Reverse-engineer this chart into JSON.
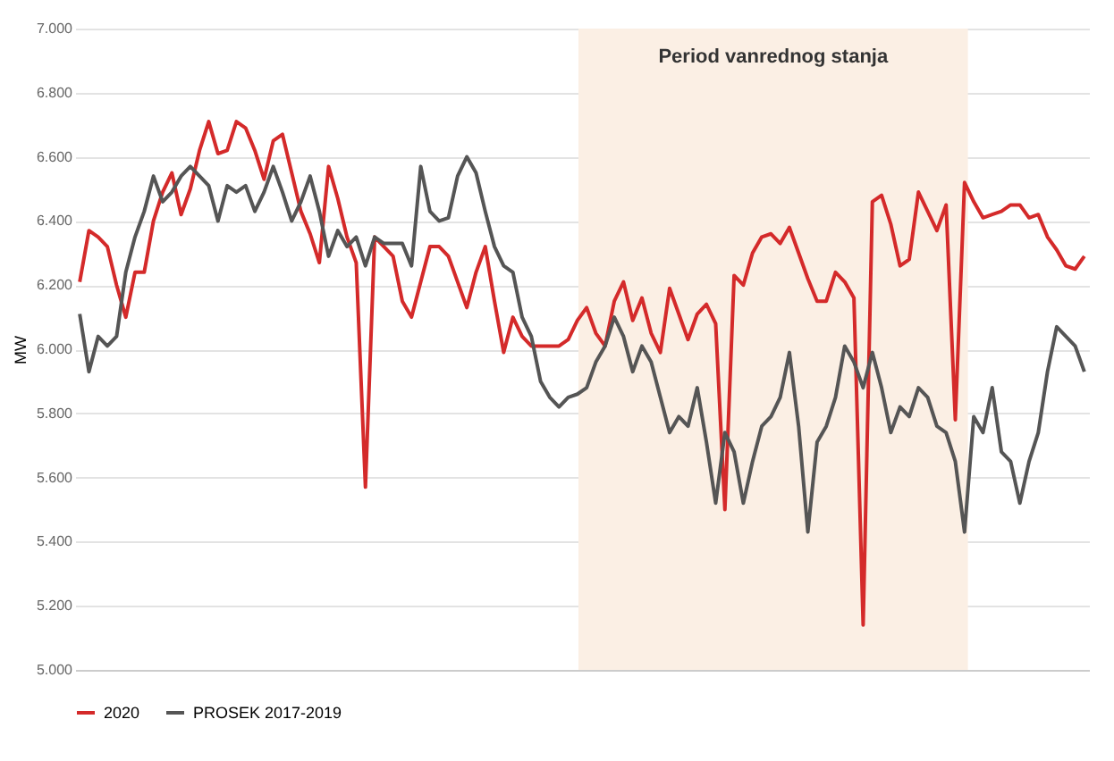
{
  "chart_data": {
    "type": "line",
    "ylabel": "MW",
    "legend": "bottom",
    "grid": "y",
    "line_style": "solid",
    "categories": [
      null,
      null,
      null,
      null,
      null,
      null,
      null,
      null,
      null,
      null,
      null,
      null,
      null,
      null,
      null,
      null,
      null,
      null,
      null,
      null,
      null,
      null,
      null,
      null,
      null,
      null,
      null,
      null,
      null,
      null,
      null,
      null,
      null,
      null,
      null,
      null,
      null,
      null,
      null,
      null,
      null,
      null,
      null,
      null,
      null,
      null,
      null,
      null,
      null,
      null,
      null,
      null,
      null,
      null,
      null,
      null,
      null,
      null,
      null,
      null,
      null,
      null,
      null,
      null,
      null,
      null,
      null,
      null,
      null,
      null,
      null,
      null,
      null,
      null,
      null,
      null,
      null,
      null,
      null,
      null,
      null,
      null,
      null,
      null,
      null,
      null,
      null,
      null,
      null,
      null,
      null,
      null,
      null,
      null,
      null,
      null,
      null,
      null,
      null,
      null,
      null,
      null,
      null,
      null,
      null,
      null,
      null,
      null,
      null,
      null
    ],
    "ylim": [
      5000,
      7000
    ],
    "yticks": [
      {
        "value": 5000,
        "label": "5.000"
      },
      {
        "value": 5200,
        "label": "5.200"
      },
      {
        "value": 5400,
        "label": "5.400"
      },
      {
        "value": 5600,
        "label": "5.600"
      },
      {
        "value": 5800,
        "label": "5.800"
      },
      {
        "value": 6000,
        "label": "6.000"
      },
      {
        "value": 6200,
        "label": "6.200"
      },
      {
        "value": 6400,
        "label": "6.400"
      },
      {
        "value": 6600,
        "label": "6.600"
      },
      {
        "value": 6800,
        "label": "6.800"
      },
      {
        "value": 7000,
        "label": "7.000"
      }
    ],
    "annotations": [
      "Period vanrednog stanja"
    ],
    "series": [
      {
        "name": "2020",
        "color": "#d42a2a",
        "values": [
          6210,
          6370,
          6350,
          6320,
          6200,
          6100,
          6240,
          6240,
          6400,
          6490,
          6550,
          6420,
          6500,
          6620,
          6710,
          6610,
          6620,
          6710,
          6690,
          6620,
          6530,
          6650,
          6670,
          6550,
          6430,
          6360,
          6270,
          6570,
          6470,
          6350,
          6270,
          5570,
          6350,
          6320,
          6290,
          6150,
          6100,
          6210,
          6320,
          6320,
          6290,
          6210,
          6130,
          6240,
          6320,
          6150,
          5990,
          6100,
          6040,
          6010,
          6010,
          6010,
          6010,
          6030,
          6090,
          6130,
          6050,
          6010,
          6150,
          6210,
          6090,
          6160,
          6050,
          5990,
          6190,
          6110,
          6030,
          6110,
          6140,
          6080,
          5500,
          6230,
          6200,
          6300,
          6350,
          6360,
          6330,
          6380,
          6300,
          6220,
          6150,
          6150,
          6240,
          6210,
          6160,
          5140,
          6460,
          6480,
          6390,
          6260,
          6280,
          6490,
          6430,
          6370,
          6450,
          5780,
          6520,
          6460,
          6410,
          6420,
          6430,
          6450,
          6450,
          6410,
          6420,
          6350,
          6310,
          6260,
          6250,
          6290
        ]
      },
      {
        "name": "PROSEK 2017-2019",
        "color": "#555555",
        "values": [
          6110,
          5930,
          6040,
          6010,
          6040,
          6240,
          6350,
          6430,
          6540,
          6460,
          6490,
          6540,
          6570,
          6540,
          6510,
          6400,
          6510,
          6490,
          6510,
          6430,
          6490,
          6570,
          6490,
          6400,
          6460,
          6540,
          6430,
          6290,
          6370,
          6320,
          6350,
          6260,
          6350,
          6330,
          6330,
          6330,
          6260,
          6570,
          6430,
          6400,
          6410,
          6540,
          6600,
          6550,
          6430,
          6320,
          6260,
          6240,
          6100,
          6040,
          5900,
          5850,
          5820,
          5850,
          5860,
          5880,
          5960,
          6010,
          6100,
          6040,
          5930,
          6010,
          5960,
          5850,
          5740,
          5790,
          5760,
          5880,
          5710,
          5520,
          5740,
          5680,
          5520,
          5650,
          5760,
          5790,
          5850,
          5990,
          5760,
          5430,
          5710,
          5760,
          5850,
          6010,
          5960,
          5880,
          5990,
          5880,
          5740,
          5820,
          5790,
          5880,
          5850,
          5760,
          5740,
          5650,
          5430,
          5790,
          5740,
          5880,
          5680,
          5650,
          5520,
          5650,
          5740,
          5930,
          6070,
          6040,
          6010,
          5930
        ]
      }
    ]
  }
}
